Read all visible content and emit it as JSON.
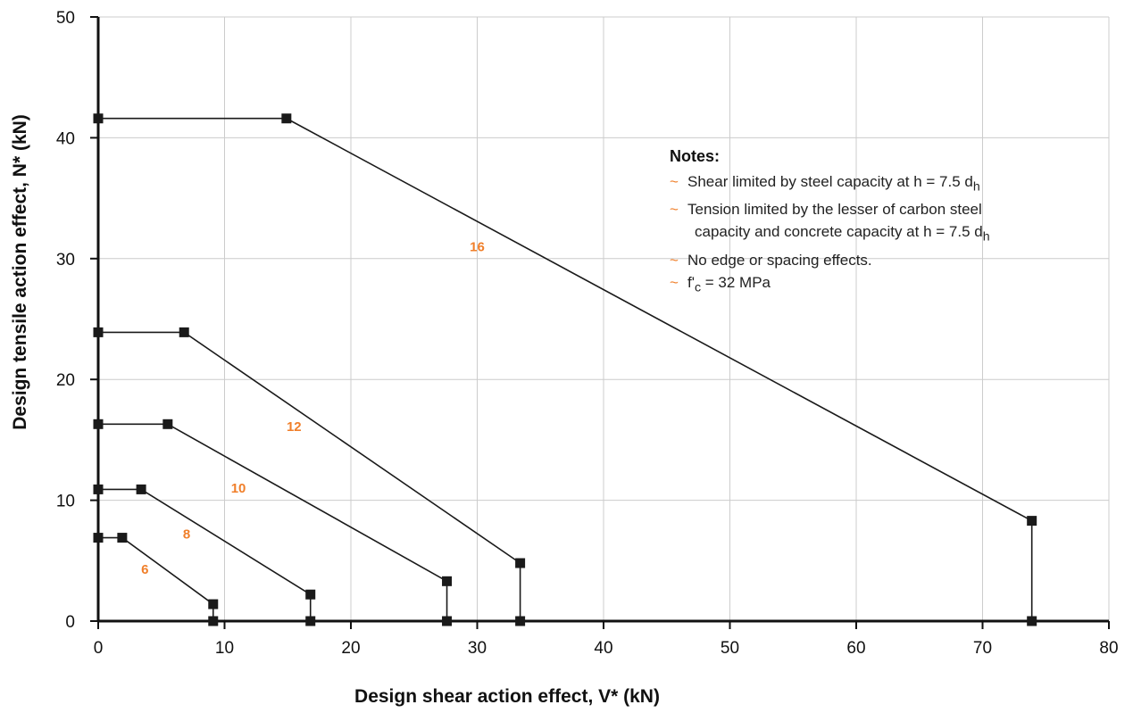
{
  "chart_data": {
    "type": "line",
    "xlabel": "Design shear action effect, V* (kN)",
    "ylabel": "Design tensile action effect, N* (kN)",
    "xlim": [
      0,
      80
    ],
    "ylim": [
      0,
      50
    ],
    "xticks": [
      "0",
      "10",
      "20",
      "30",
      "40",
      "50",
      "60",
      "70",
      "80"
    ],
    "yticks": [
      "0",
      "10",
      "20",
      "30",
      "40",
      "50"
    ],
    "grid": true,
    "series": [
      {
        "name": "6",
        "points": [
          [
            0,
            6.9
          ],
          [
            1.9,
            6.9
          ],
          [
            9.1,
            1.4
          ],
          [
            9.1,
            0
          ]
        ]
      },
      {
        "name": "8",
        "points": [
          [
            0,
            10.9
          ],
          [
            3.4,
            10.9
          ],
          [
            16.8,
            2.2
          ],
          [
            16.8,
            0
          ]
        ]
      },
      {
        "name": "10",
        "points": [
          [
            0,
            16.3
          ],
          [
            5.5,
            16.3
          ],
          [
            27.6,
            3.3
          ],
          [
            27.6,
            0
          ]
        ]
      },
      {
        "name": "12",
        "points": [
          [
            0,
            23.9
          ],
          [
            6.8,
            23.9
          ],
          [
            33.4,
            4.8
          ],
          [
            33.4,
            0
          ]
        ]
      },
      {
        "name": "16",
        "points": [
          [
            0,
            41.6
          ],
          [
            14.9,
            41.6
          ],
          [
            73.9,
            8.3
          ],
          [
            73.9,
            0
          ]
        ]
      }
    ],
    "label_positions_data": [
      {
        "name": "6",
        "x": 3.7,
        "y": 4.3
      },
      {
        "name": "8",
        "x": 7.0,
        "y": 7.2
      },
      {
        "name": "10",
        "x": 11.1,
        "y": 11.0
      },
      {
        "name": "12",
        "x": 15.5,
        "y": 16.1
      },
      {
        "name": "16",
        "x": 30.0,
        "y": 31.0
      }
    ],
    "colors": {
      "line": "#1a1a1a",
      "marker": "#1a1a1a",
      "label": "#f07f2a",
      "grid": "#cccccc",
      "note_tilde": "#f07f2a"
    }
  },
  "notes": {
    "title": "Notes:",
    "tilde": "~",
    "items": [
      {
        "text": "Shear limited by steel capacity at h = 7.5 d",
        "sub": "h"
      },
      {
        "text": "Tension limited by the lesser of carbon steel",
        "sub": ""
      },
      {
        "text": "  capacity and concrete capacity at h = 7.5 d",
        "sub": "h"
      },
      {
        "text": "No edge or spacing effects.",
        "sub": ""
      },
      {
        "text_pre": "f'",
        "sub": "c",
        "text_post": " = 32 MPa"
      }
    ]
  }
}
